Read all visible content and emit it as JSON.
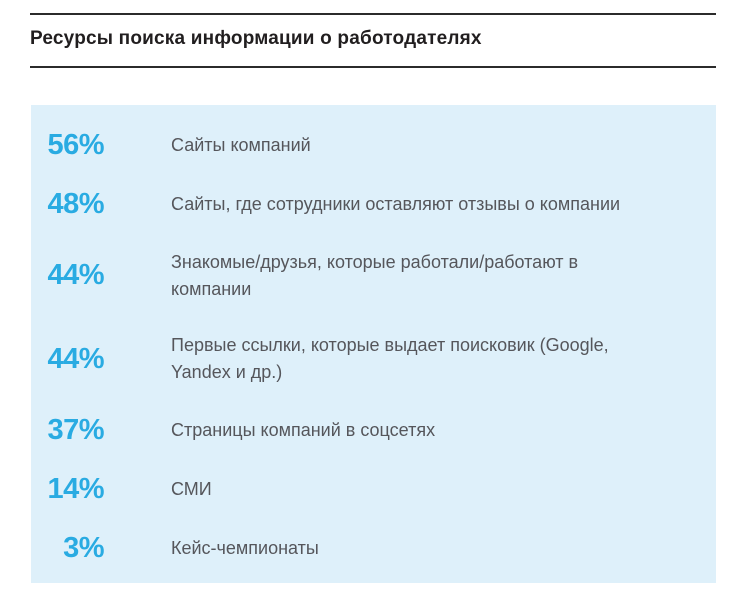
{
  "header": {
    "title": "Ресурсы поиска информации о работодателях"
  },
  "rows": [
    {
      "percent": "56%",
      "label": "Сайты компаний"
    },
    {
      "percent": "48%",
      "label": "Сайты, где сотрудники оставляют отзывы о компании"
    },
    {
      "percent": "44%",
      "label": "Знакомые/друзья, которые работали/работают в\nкомпании"
    },
    {
      "percent": "44%",
      "label": "Первые ссылки, которые выдает поисковик (Google,\nYandex и др.)"
    },
    {
      "percent": "37%",
      "label": "Страницы компаний в соцсетях"
    },
    {
      "percent": "14%",
      "label": "СМИ"
    },
    {
      "percent": "3%",
      "label": "Кейс-чемпионаты"
    }
  ],
  "chart_data": {
    "type": "table",
    "title": "Ресурсы поиска информации о работодателях",
    "categories": [
      "Сайты компаний",
      "Сайты, где сотрудники оставляют отзывы о компании",
      "Знакомые/друзья, которые работали/работают в компании",
      "Первые ссылки, которые выдает поисковик (Google, Yandex и др.)",
      "Страницы компаний в соцсетях",
      "СМИ",
      "Кейс-чемпионаты"
    ],
    "values": [
      56,
      48,
      44,
      44,
      37,
      14,
      3
    ],
    "unit": "%",
    "legend_position": "none",
    "grid": false
  },
  "colors": {
    "accent_blue": "#29abe2",
    "panel_background": "#def0fa",
    "label_gray": "#55565b",
    "title_black": "#211e1f",
    "rule_black": "#2b2b2b"
  }
}
